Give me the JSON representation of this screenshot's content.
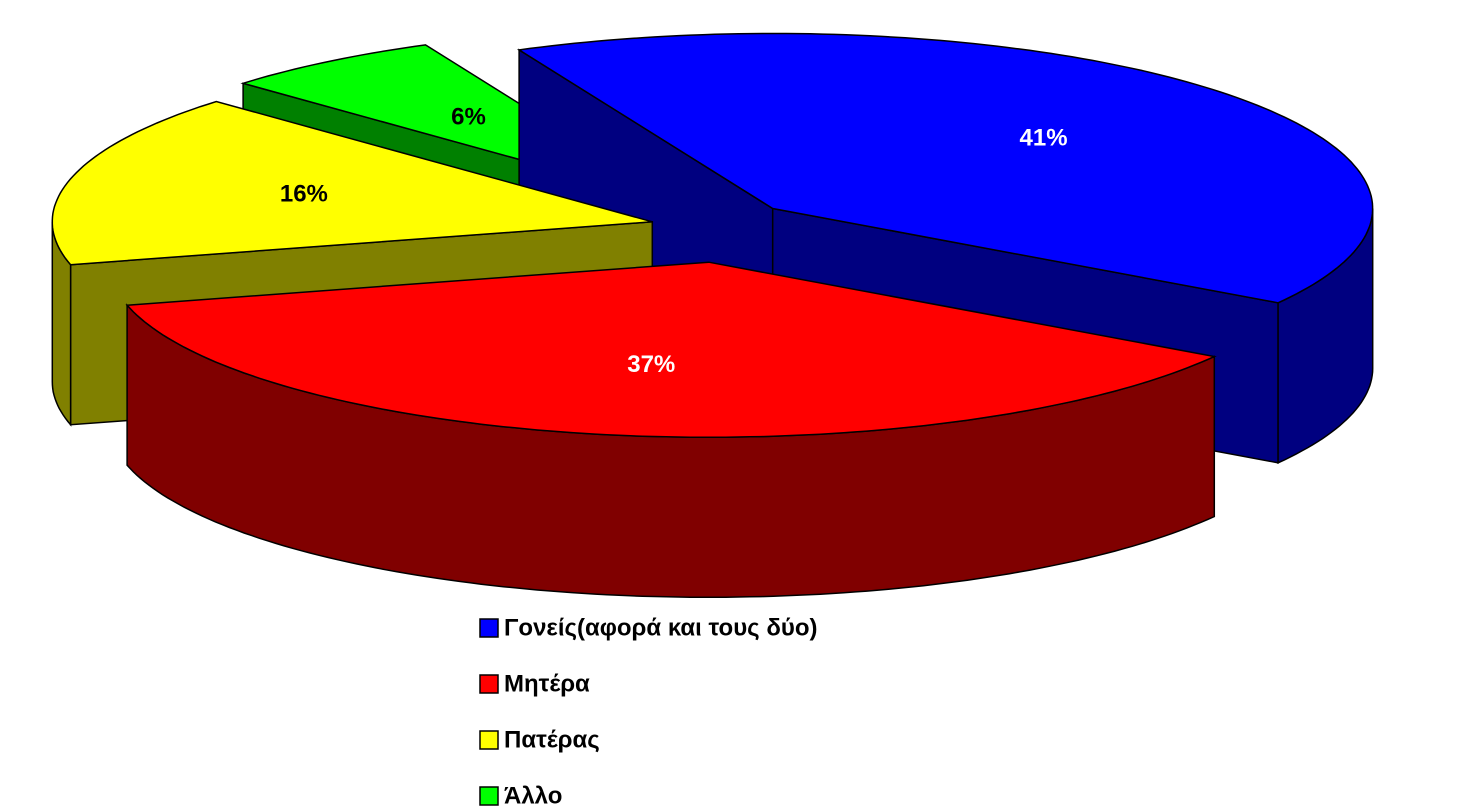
{
  "chart_data": {
    "type": "pie",
    "categories": [
      "Γονείς(αφορά και τους δύο)",
      "Μητέρα",
      "Πατέρας",
      "Άλλο"
    ],
    "values": [
      41,
      37,
      16,
      6
    ],
    "value_labels": [
      "41%",
      "37%",
      "16%",
      "6%"
    ],
    "colors": [
      "#0000ff",
      "#ff0000",
      "#ffff00",
      "#00ff00"
    ],
    "legend": "bottom"
  }
}
